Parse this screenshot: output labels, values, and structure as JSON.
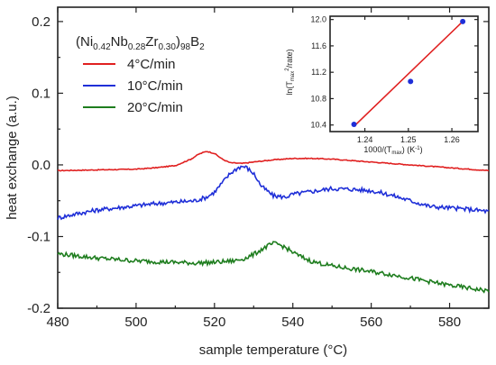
{
  "chart_data": [
    {
      "type": "line",
      "title": "",
      "xlabel": "sample temperature (°C)",
      "ylabel": "heat exchange (a.u.)",
      "xlim": [
        480,
        590
      ],
      "ylim": [
        -0.2,
        0.22
      ],
      "x_ticks": [
        480,
        500,
        520,
        540,
        560,
        580
      ],
      "y_ticks": [
        -0.2,
        -0.1,
        0.0,
        0.1,
        0.2
      ],
      "x_tick_labels": [
        "480",
        "500",
        "520",
        "540",
        "560",
        "580"
      ],
      "y_tick_labels": [
        "-0.2",
        "-0.1",
        "0.0",
        "0.1",
        "0.2"
      ],
      "grid": false,
      "legend_title": {
        "base": "(Ni",
        "s1": "0.42",
        "t1": "Nb",
        "s2": "0.28",
        "t2": "Zr",
        "s3": "0.30",
        "t3": ")",
        "s4": "98",
        "t4": "B",
        "s5": "2"
      },
      "legend_position": "top-left",
      "series": [
        {
          "name": "4°C/min",
          "color": "#e02020",
          "x": [
            480,
            490,
            500,
            505,
            510,
            514,
            516,
            518,
            520,
            522,
            524,
            527,
            530,
            535,
            540,
            545,
            550,
            555,
            560,
            565,
            570,
            575,
            580,
            585,
            590
          ],
          "y": [
            -0.008,
            -0.007,
            -0.006,
            -0.004,
            -0.001,
            0.008,
            0.015,
            0.019,
            0.016,
            0.008,
            0.003,
            0.002,
            0.004,
            0.007,
            0.009,
            0.009,
            0.008,
            0.006,
            0.004,
            0.002,
            0.0,
            -0.002,
            -0.004,
            -0.006,
            -0.008
          ]
        },
        {
          "name": "10°C/min",
          "color": "#1f2fd8",
          "x": [
            480,
            485,
            490,
            495,
            500,
            505,
            510,
            515,
            518,
            520,
            522,
            524,
            526,
            527,
            528,
            530,
            532,
            535,
            538,
            540,
            545,
            550,
            555,
            560,
            565,
            570,
            575,
            580,
            585,
            590
          ],
          "y": [
            -0.074,
            -0.068,
            -0.063,
            -0.06,
            -0.057,
            -0.054,
            -0.052,
            -0.05,
            -0.045,
            -0.038,
            -0.025,
            -0.012,
            -0.004,
            -0.002,
            -0.003,
            -0.012,
            -0.03,
            -0.043,
            -0.045,
            -0.041,
            -0.037,
            -0.033,
            -0.034,
            -0.036,
            -0.042,
            -0.05,
            -0.058,
            -0.06,
            -0.062,
            -0.065
          ]
        },
        {
          "name": "20°C/min",
          "color": "#1e7d1e",
          "x": [
            480,
            485,
            490,
            495,
            500,
            505,
            510,
            515,
            520,
            525,
            528,
            530,
            532,
            534,
            535,
            536,
            538,
            540,
            542,
            545,
            550,
            555,
            560,
            565,
            570,
            575,
            580,
            585,
            590
          ],
          "y": [
            -0.124,
            -0.127,
            -0.13,
            -0.132,
            -0.134,
            -0.135,
            -0.136,
            -0.137,
            -0.136,
            -0.134,
            -0.13,
            -0.125,
            -0.118,
            -0.112,
            -0.11,
            -0.11,
            -0.115,
            -0.122,
            -0.128,
            -0.135,
            -0.141,
            -0.145,
            -0.149,
            -0.153,
            -0.158,
            -0.163,
            -0.168,
            -0.172,
            -0.176
          ]
        }
      ]
    },
    {
      "type": "scatter",
      "title": "",
      "xlabel": "1000/(T",
      "xlabel_sub": "max",
      "xlabel_tail": ") (K",
      "xlabel_sup": "-1",
      "xlabel_end": ")",
      "ylabel": "ln(T",
      "ylabel_sub": "max",
      "ylabel_sup": "2",
      "ylabel_tail": "/rate)",
      "xlim": [
        1.232,
        1.266
      ],
      "ylim": [
        10.3,
        12.05
      ],
      "x_ticks": [
        1.24,
        1.25,
        1.26
      ],
      "y_ticks": [
        10.4,
        10.8,
        11.2,
        11.6,
        12.0
      ],
      "x_tick_labels": [
        "1.24",
        "1.25",
        "1.26"
      ],
      "y_tick_labels": [
        "10.4",
        "10.8",
        "11.2",
        "11.6",
        "12.0"
      ],
      "points": [
        {
          "x": 1.2375,
          "y": 10.41
        },
        {
          "x": 1.2505,
          "y": 11.06
        },
        {
          "x": 1.2625,
          "y": 11.97
        }
      ],
      "fit_line": {
        "x": [
          1.2375,
          1.2625
        ],
        "y": [
          10.38,
          11.97
        ]
      },
      "point_color": "#1f2fd8",
      "line_color": "#e02020"
    }
  ]
}
